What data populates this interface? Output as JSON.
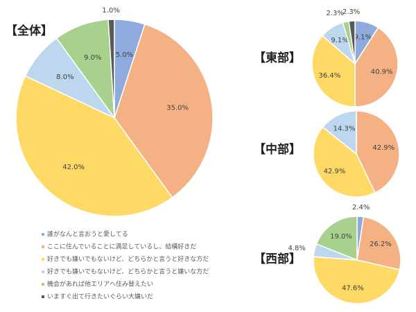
{
  "chart_data": [
    {
      "type": "pie",
      "title": "【全体】",
      "categories": [
        "誰がなんと言おうと愛してる",
        "ここに住んでいることに満足しているし、結構好きだ",
        "好きでも嫌いでもないけど、どちらかと言うと好きな方だ",
        "好きでも嫌いでもないけど、どちらかと言うと嫌いな方だ",
        "機会があれば他エリアへ住み替えたい",
        "いますぐ出て行きたいぐらい大嫌いだ"
      ],
      "colors": [
        "#8faadc",
        "#f4b183",
        "#ffd966",
        "#bdd7ee",
        "#a9d18e",
        "#595959"
      ],
      "values": [
        5.0,
        35.0,
        42.0,
        8.0,
        9.0,
        1.0
      ],
      "value_labels": [
        "5.0%",
        "35.0%",
        "42.0%",
        "8.0%",
        "9.0%",
        "1.0%"
      ]
    },
    {
      "type": "pie",
      "title": "【東部】",
      "values": [
        9.1,
        40.9,
        36.4,
        9.1,
        2.3,
        2.3
      ],
      "value_labels": [
        "9.1%",
        "40.9%",
        "36.4%",
        "9.1%",
        "2.3%",
        "2.3%"
      ]
    },
    {
      "type": "pie",
      "title": "【中部】",
      "values": [
        null,
        42.9,
        42.9,
        14.3,
        null,
        null
      ],
      "value_labels": [
        null,
        "42.9%",
        "42.9%",
        "14.3%",
        null,
        null
      ]
    },
    {
      "type": "pie",
      "title": "【西部】",
      "values": [
        2.4,
        26.2,
        47.6,
        4.8,
        19.0,
        null
      ],
      "value_labels": [
        "2.4%",
        "26.2%",
        "47.6%",
        "4.8%",
        "19.0%",
        null
      ]
    }
  ]
}
